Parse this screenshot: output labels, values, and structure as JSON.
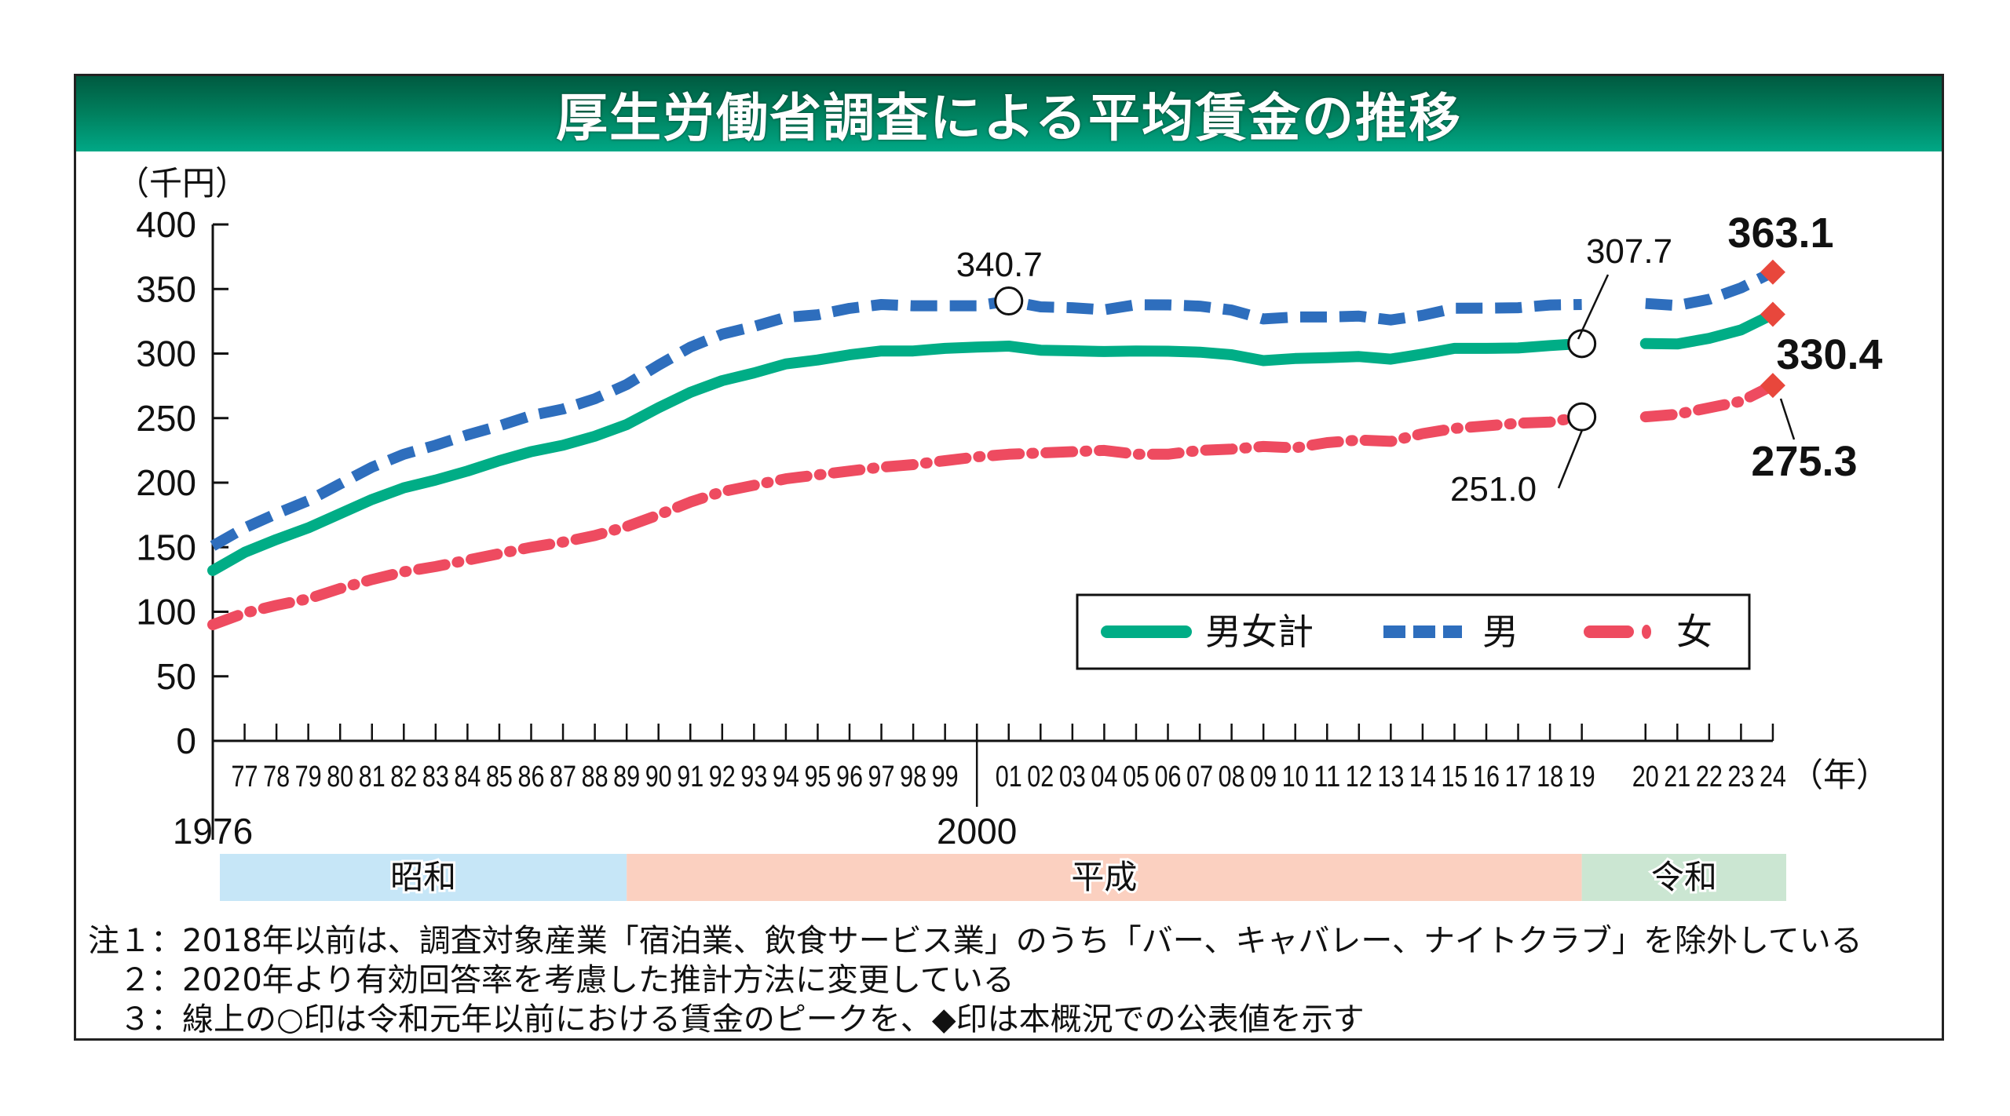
{
  "title": "厚生労働省調査による平均賃金の推移",
  "notes": [
    "注１：2018年以前は、調査対象産業「宿泊業、飲食サービス業」のうち「バー、キャバレー、ナイトクラブ」を除外している",
    "　２：2020年より有効回答率を考慮した推計方法に変更している",
    "　３：線上の○印は令和元年以前における賃金のピークを、◆印は本概況での公表値を示す"
  ],
  "eras": [
    {
      "name": "昭和",
      "from": 1976,
      "to": 1989,
      "color": "#c6e6f7"
    },
    {
      "name": "平成",
      "from": 1989,
      "to": 2019,
      "color": "#fbd0c0"
    },
    {
      "name": "令和",
      "from": 2019,
      "to": 2024,
      "color": "#cbe6d2"
    }
  ],
  "chart_data": {
    "type": "line",
    "title": "厚生労働省調査による平均賃金の推移",
    "ylabel": "（千円）",
    "xlabel": "（年）",
    "ylim": [
      0,
      400
    ],
    "yticks": [
      0,
      50,
      100,
      150,
      200,
      250,
      300,
      350,
      400
    ],
    "x_major_labels": [
      {
        "year": 1976,
        "label": "1976"
      },
      {
        "year": 2000,
        "label": "2000"
      }
    ],
    "x_tick_labels": [
      "77",
      "78",
      "79",
      "80",
      "81",
      "82",
      "83",
      "84",
      "85",
      "86",
      "87",
      "88",
      "89",
      "90",
      "91",
      "92",
      "93",
      "94",
      "95",
      "96",
      "97",
      "98",
      "99",
      "01",
      "02",
      "03",
      "04",
      "05",
      "06",
      "07",
      "08",
      "09",
      "10",
      "11",
      "12",
      "13",
      "14",
      "15",
      "16",
      "17",
      "18",
      "19",
      "20",
      "21",
      "22",
      "23",
      "24"
    ],
    "x_break_after": 2019,
    "legend": {
      "position": "center-right-lower",
      "entries": [
        "男女計",
        "男",
        "女"
      ]
    },
    "x": [
      1976,
      1977,
      1978,
      1979,
      1980,
      1981,
      1982,
      1983,
      1984,
      1985,
      1986,
      1987,
      1988,
      1989,
      1990,
      1991,
      1992,
      1993,
      1994,
      1995,
      1996,
      1997,
      1998,
      1999,
      2000,
      2001,
      2002,
      2003,
      2004,
      2005,
      2006,
      2007,
      2008,
      2009,
      2010,
      2011,
      2012,
      2013,
      2014,
      2015,
      2016,
      2017,
      2018,
      2019,
      2020,
      2021,
      2022,
      2023,
      2024
    ],
    "series": [
      {
        "name": "男女計",
        "style": "solid",
        "color": "#00ad86",
        "values": [
          132,
          146,
          156,
          165,
          176,
          187,
          196,
          202,
          209,
          217,
          224,
          229,
          236,
          245,
          258,
          270,
          279,
          285,
          292,
          295,
          299,
          302,
          302,
          304,
          305,
          305.8,
          302.6,
          302.1,
          301.6,
          302.0,
          301.8,
          301.1,
          299.1,
          294.5,
          296.2,
          296.8,
          297.7,
          295.7,
          299.6,
          304.0,
          304.0,
          304.3,
          306.2,
          307.7,
          307.7,
          307.4,
          311.8,
          318.3,
          330.4
        ]
      },
      {
        "name": "男",
        "style": "dashed",
        "color": "#2e6ebd",
        "values": [
          151,
          165,
          176,
          186,
          199,
          212,
          222,
          229,
          237,
          244,
          252,
          257,
          265,
          276,
          291,
          305,
          315,
          321,
          328,
          330,
          335,
          338,
          337,
          337,
          337,
          340.7,
          336.2,
          335.5,
          333.9,
          337.8,
          337.7,
          336.7,
          333.7,
          326.8,
          328.3,
          328.3,
          329.0,
          326.0,
          329.6,
          335.1,
          335.2,
          335.5,
          337.6,
          338.0,
          338.8,
          337.2,
          342.0,
          350.9,
          363.1
        ]
      },
      {
        "name": "女",
        "style": "dash-dot",
        "color": "#ee4b60",
        "values": [
          90,
          99,
          105,
          110,
          118,
          125,
          131,
          135,
          140,
          145,
          150,
          154,
          159,
          166,
          175,
          185,
          193,
          198,
          203,
          206,
          209,
          212,
          214,
          217,
          220,
          222,
          223,
          224,
          225,
          222,
          222,
          225,
          226,
          228,
          227,
          231,
          233,
          232,
          238,
          242,
          244,
          246,
          247,
          251.0,
          251,
          253,
          258,
          263,
          275.3
        ]
      }
    ],
    "annotations": [
      {
        "series": "男",
        "year": 2001,
        "value": 340.7,
        "marker": "circle",
        "label": "340.7"
      },
      {
        "series": "男女計",
        "year": 2019,
        "value": 307.7,
        "marker": "circle",
        "label": "307.7"
      },
      {
        "series": "女",
        "year": 2019,
        "value": 251.0,
        "marker": "circle",
        "label": "251.0"
      },
      {
        "series": "男",
        "year": 2024,
        "value": 363.1,
        "marker": "diamond",
        "label": "363.1"
      },
      {
        "series": "男女計",
        "year": 2024,
        "value": 330.4,
        "marker": "diamond",
        "label": "330.4"
      },
      {
        "series": "女",
        "year": 2024,
        "value": 275.3,
        "marker": "diamond",
        "label": "275.3"
      }
    ],
    "marker_color_diamond": "#e8473c"
  }
}
